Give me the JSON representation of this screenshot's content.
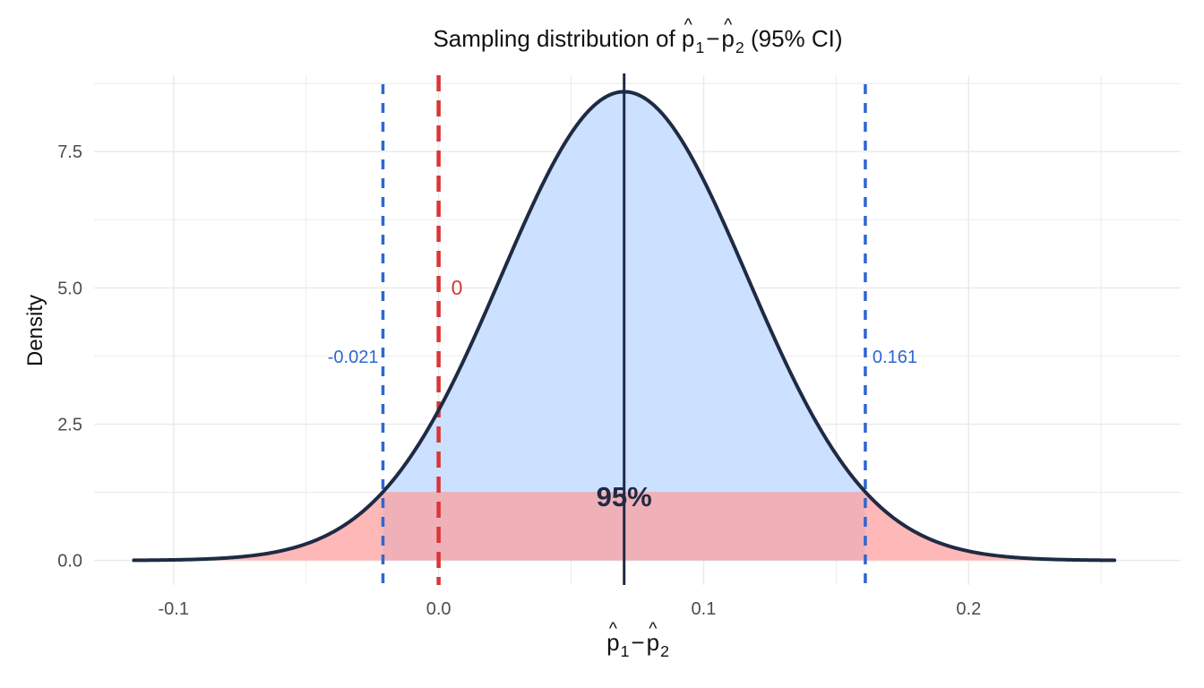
{
  "chart_data": {
    "type": "area",
    "title": "Sampling distribution of p̂1 − p̂2  (95% CI)",
    "title_parts": {
      "prefix": "Sampling distribution of ",
      "p_symbol": "p",
      "sub1": "1",
      "minus": "−",
      "sub2": "2",
      "suffix": "  (95% CI)"
    },
    "xlabel": "p̂1 − p̂2",
    "xlabel_parts": {
      "p_symbol": "p",
      "sub1": "1",
      "minus": "−",
      "sub2": "2"
    },
    "ylabel": "Density",
    "xlim": [
      -0.13,
      0.28
    ],
    "ylim": [
      -0.45,
      8.9
    ],
    "x_ticks": [
      {
        "value": -0.1,
        "label": "-0.1"
      },
      {
        "value": 0.0,
        "label": "0.0"
      },
      {
        "value": 0.1,
        "label": "0.1"
      },
      {
        "value": 0.2,
        "label": "0.2"
      }
    ],
    "y_ticks": [
      {
        "value": 0.0,
        "label": "0.0"
      },
      {
        "value": 2.5,
        "label": "2.5"
      },
      {
        "value": 5.0,
        "label": "5.0"
      },
      {
        "value": 7.5,
        "label": "7.5"
      }
    ],
    "grid": true,
    "distribution": {
      "name": "normal",
      "mean": 0.07,
      "sd": 0.0464,
      "x_range": [
        -0.115,
        0.255
      ]
    },
    "ci": {
      "lower": -0.021,
      "upper": 0.161,
      "lower_label": "-0.021",
      "upper_label": "0.161",
      "level_label": "95%"
    },
    "null_value": {
      "value": 0,
      "label": "0"
    },
    "colors": {
      "curve": "#1f2a44",
      "ci_fill": "#cce0ff",
      "tail_fill": "#ffb8b8",
      "band_fill": "#f0b0b8",
      "ci_lines": "#2f66d0",
      "null_line": "#d93636",
      "center_line": "#1f2a44",
      "grid": "#ebebeb",
      "tick_text": "#4d4d4d"
    }
  }
}
